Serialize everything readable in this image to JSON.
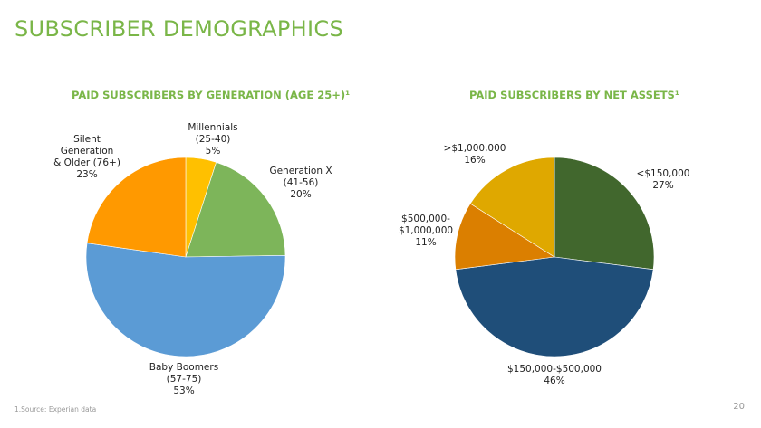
{
  "slide": {
    "title": "SUBSCRIBER DEMOGRAPHICS",
    "footnote": "1.Source: Experian data",
    "page_number": "20"
  },
  "chart_data": [
    {
      "type": "pie",
      "title": "PAID SUBSCRIBERS BY GENERATION (AGE 25+)¹",
      "slices": [
        {
          "label": "Millennials\n(25-40)",
          "value": 5,
          "value_label": "5%",
          "color": "#ffc000"
        },
        {
          "label": "Generation X\n(41-56)",
          "value": 20,
          "value_label": "20%",
          "color": "#7db55a"
        },
        {
          "label": "Baby Boomers\n(57-75)",
          "value": 53,
          "value_label": "53%",
          "color": "#5b9bd5"
        },
        {
          "label": "Silent\nGeneration\n& Older (76+)",
          "value": 23,
          "value_label": "23%",
          "color": "#ff9900"
        }
      ]
    },
    {
      "type": "pie",
      "title": "PAID SUBSCRIBERS BY NET ASSETS¹",
      "slices": [
        {
          "label": "<$150,000",
          "value": 27,
          "value_label": "27%",
          "color": "#41672d"
        },
        {
          "label": "$150,000-$500,000",
          "value": 46,
          "value_label": "46%",
          "color": "#1f4e79"
        },
        {
          "label": "$500,000-\n$1,000,000",
          "value": 11,
          "value_label": "11%",
          "color": "#db7f00"
        },
        {
          "label": ">$1,000,000",
          "value": 16,
          "value_label": "16%",
          "color": "#dfa800"
        }
      ]
    }
  ]
}
